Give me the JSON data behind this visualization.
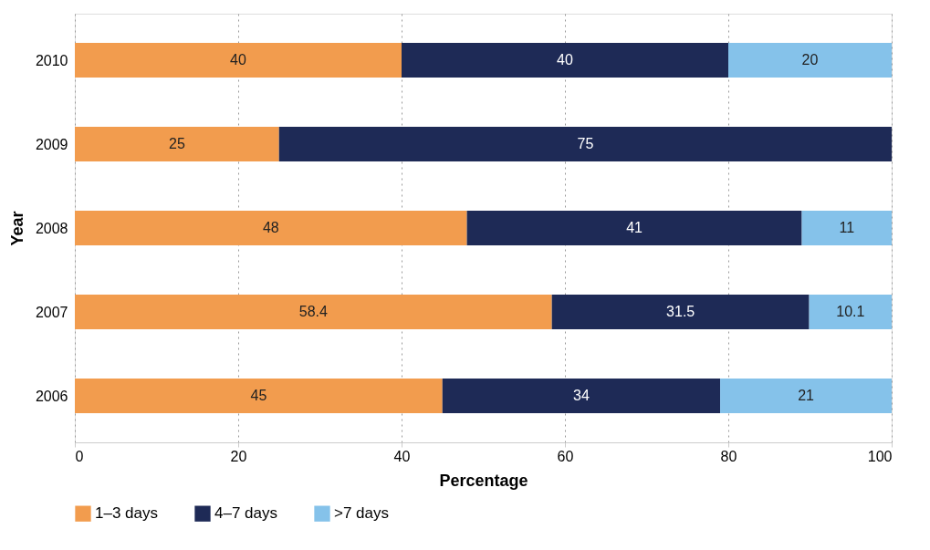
{
  "chart_data": {
    "type": "bar",
    "orientation": "horizontal",
    "stacked": true,
    "xlabel": "Percentage",
    "ylabel": "Year",
    "categories": [
      "2010",
      "2009",
      "2008",
      "2007",
      "2006"
    ],
    "series": [
      {
        "name": "1–3 days",
        "color": "#f29c4e",
        "values": [
          40,
          25,
          48,
          58.4,
          45
        ]
      },
      {
        "name": "4–7 days",
        "color": "#1e2a56",
        "values": [
          40,
          75,
          41,
          31.5,
          34
        ]
      },
      {
        "name": ">7 days",
        "color": "#85c2ea",
        "values": [
          20,
          null,
          11,
          10.1,
          21
        ]
      }
    ],
    "xlim": [
      0,
      100
    ],
    "xticks": [
      0,
      20,
      40,
      60,
      80,
      100
    ],
    "grid": "x",
    "legend": "bottom",
    "data_labels": true
  }
}
